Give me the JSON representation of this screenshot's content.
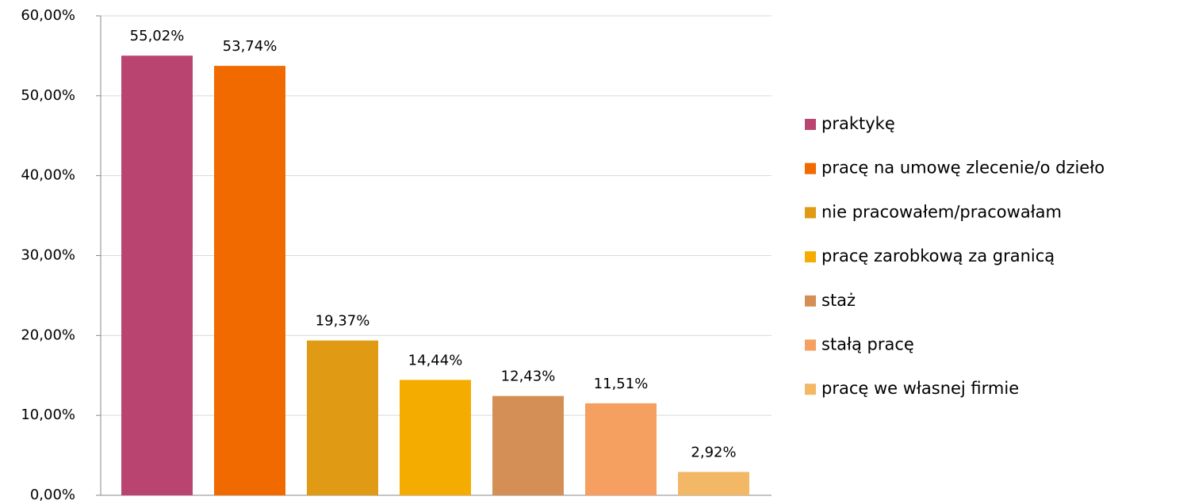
{
  "chart_data": {
    "type": "bar",
    "categories": [
      "praktykę",
      "pracę na umowę zlecenie/o dzieło",
      "nie pracowałem/pracowałam",
      "pracę zarobkową za granicą",
      "staż",
      "stałą pracę",
      "pracę we własnej firmie"
    ],
    "values": [
      55.02,
      53.74,
      19.37,
      14.44,
      12.43,
      11.51,
      2.92
    ],
    "value_labels": [
      "55,02%",
      "53,74%",
      "19,37%",
      "14,44%",
      "12,43%",
      "11,51%",
      "2,92%"
    ],
    "colors": [
      "#b94470",
      "#f06a00",
      "#e09a14",
      "#f5ac00",
      "#d38f55",
      "#f5a060",
      "#f2b865"
    ],
    "ylim": [
      0,
      60
    ],
    "yticks": [
      {
        "value": 0,
        "label": "0,00%"
      },
      {
        "value": 10,
        "label": "10,00%"
      },
      {
        "value": 20,
        "label": "20,00%"
      },
      {
        "value": 30,
        "label": "30,00%"
      },
      {
        "value": 40,
        "label": "40,00%"
      },
      {
        "value": 50,
        "label": "50,00%"
      },
      {
        "value": 60,
        "label": "60,00%"
      }
    ],
    "grid": true,
    "legend": "right"
  }
}
